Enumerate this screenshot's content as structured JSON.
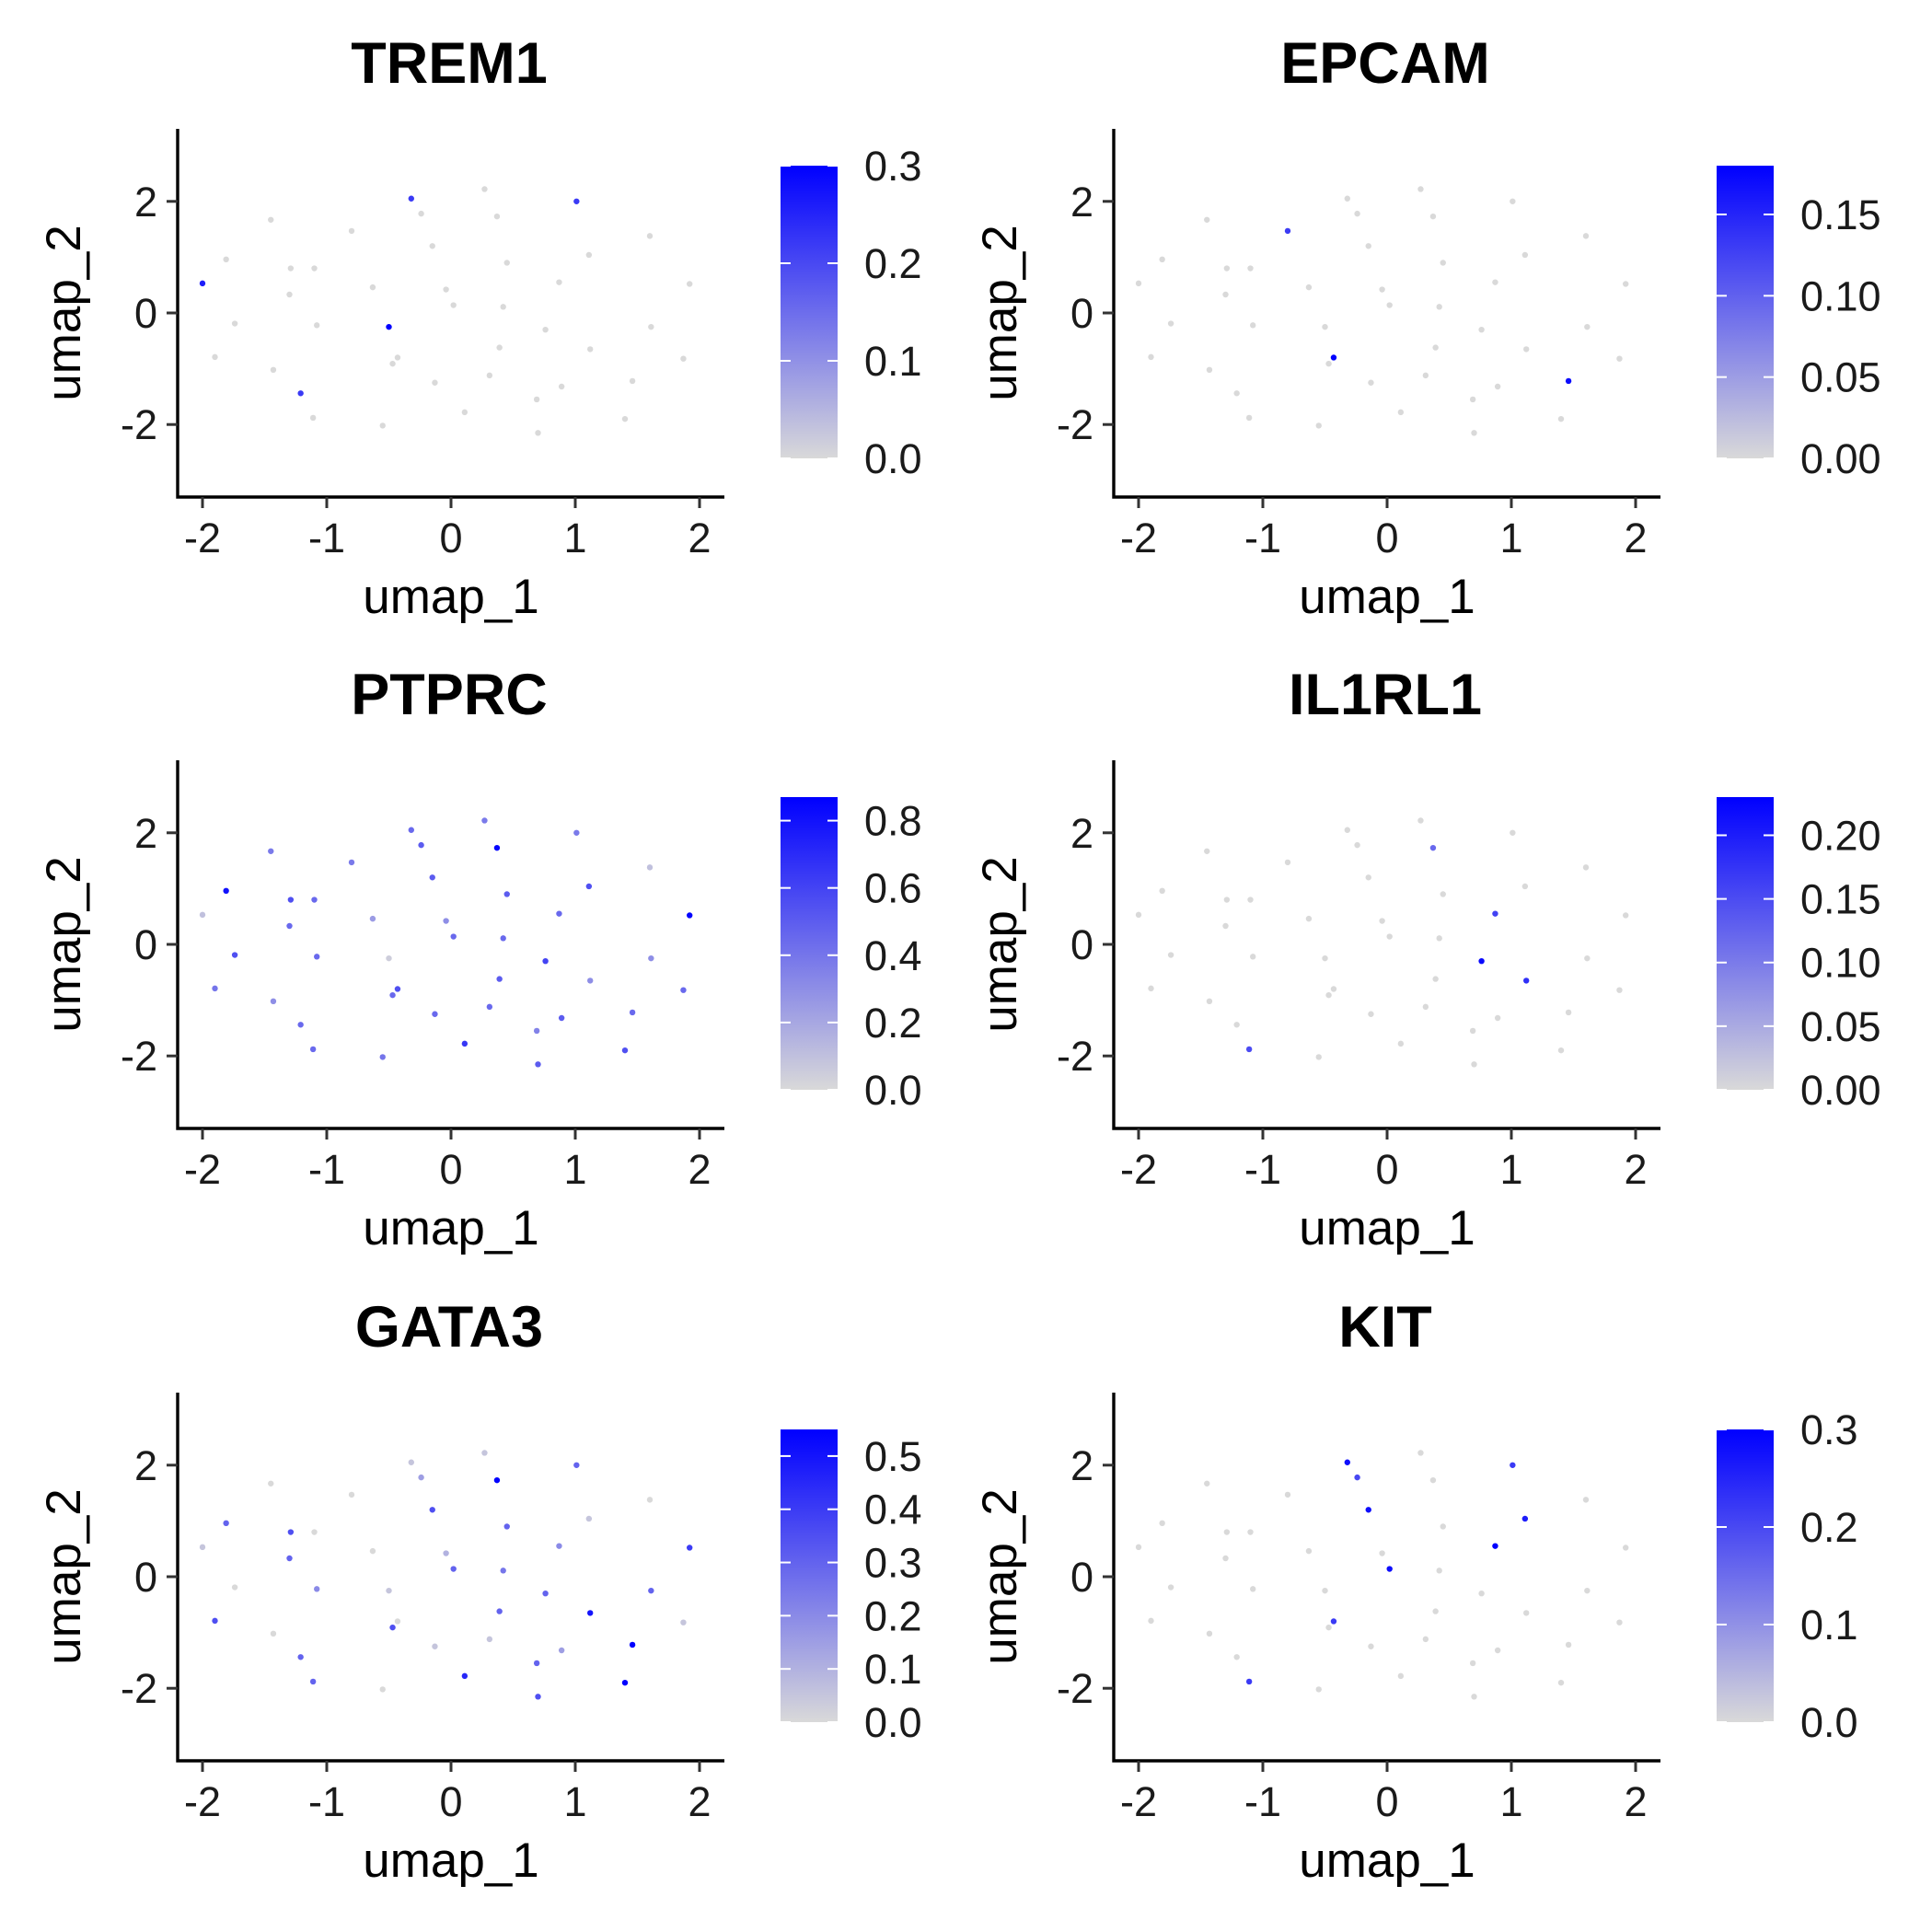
{
  "figure": {
    "panels": [
      "TREM1",
      "EPCAM",
      "PTPRC",
      "IL1RL1",
      "GATA3",
      "KIT"
    ]
  },
  "colors": {
    "low": "#d9d9d9",
    "high": "#0000ff"
  },
  "chart_data": [
    {
      "type": "scatter",
      "title": "TREM1",
      "xlabel": "umap_1",
      "ylabel": "umap_2",
      "xlim": [
        -2.2,
        2.2
      ],
      "ylim": [
        -3.3,
        3.3
      ],
      "xticks": [
        "-2",
        "-1",
        "0",
        "1",
        "2"
      ],
      "yticks": [
        "-2",
        "0",
        "2"
      ],
      "legend": {
        "position": "right",
        "range": [
          0,
          0.3
        ],
        "labels": [
          "0.0",
          "0.1",
          "0.2",
          "0.3"
        ]
      },
      "x": [
        -0.32,
        0.27,
        1.01,
        -0.24,
        0.37,
        -1.45,
        -0.8,
        1.6,
        -1.81,
        -0.15,
        0.45,
        1.11,
        -1.29,
        -1.1,
        -2.0,
        -1.3,
        -0.63,
        0.87,
        0.02,
        -0.04,
        0.42,
        1.92,
        -1.74,
        -1.08,
        -0.5,
        0.76,
        1.61,
        -0.43,
        -1.9,
        0.39,
        1.12,
        1.87,
        -1.43,
        -0.47,
        0.31,
        -0.13,
        0.89,
        1.46,
        -1.21,
        0.69,
        0.11,
        -1.11,
        1.4,
        -0.55,
        0.7
      ],
      "y": [
        2.05,
        2.22,
        2.0,
        1.78,
        1.73,
        1.67,
        1.47,
        1.38,
        0.96,
        1.2,
        0.9,
        1.04,
        0.8,
        0.8,
        0.53,
        0.33,
        0.46,
        0.55,
        0.14,
        0.42,
        0.11,
        0.52,
        -0.19,
        -0.22,
        -0.25,
        -0.3,
        -0.25,
        -0.8,
        -0.79,
        -0.62,
        -0.65,
        -0.82,
        -1.02,
        -0.91,
        -1.12,
        -1.25,
        -1.32,
        -1.22,
        -1.44,
        -1.55,
        -1.78,
        -1.88,
        -1.9,
        -2.02,
        -2.15
      ],
      "value": [
        0.22,
        0.0,
        0.22,
        0.0,
        0.0,
        0.0,
        0.0,
        0.0,
        0.0,
        0.0,
        0.0,
        0.0,
        0.0,
        0.0,
        0.26,
        0.0,
        0.0,
        0.0,
        0.0,
        0.0,
        0.0,
        0.0,
        0.0,
        0.0,
        0.3,
        0.0,
        0.0,
        0.0,
        0.0,
        0.0,
        0.0,
        0.0,
        0.0,
        0.0,
        0.0,
        0.0,
        0.0,
        0.0,
        0.22,
        0.0,
        0.0,
        0.0,
        0.0,
        0.0,
        0.0
      ]
    },
    {
      "type": "scatter",
      "title": "EPCAM",
      "xlabel": "umap_1",
      "ylabel": "umap_2",
      "xlim": [
        -2.2,
        2.2
      ],
      "ylim": [
        -3.3,
        3.3
      ],
      "xticks": [
        "-2",
        "-1",
        "0",
        "1",
        "2"
      ],
      "yticks": [
        "-2",
        "0",
        "2"
      ],
      "legend": {
        "position": "right",
        "range": [
          0,
          0.18
        ],
        "labels": [
          "0.00",
          "0.05",
          "0.10",
          "0.15"
        ]
      },
      "x": [
        -0.32,
        0.27,
        1.01,
        -0.24,
        0.37,
        -1.45,
        -0.8,
        1.6,
        -1.81,
        -0.15,
        0.45,
        1.11,
        -1.29,
        -1.1,
        -2.0,
        -1.3,
        -0.63,
        0.87,
        0.02,
        -0.04,
        0.42,
        1.92,
        -1.74,
        -1.08,
        -0.5,
        0.76,
        1.61,
        -0.43,
        -1.9,
        0.39,
        1.12,
        1.87,
        -1.43,
        -0.47,
        0.31,
        -0.13,
        0.89,
        1.46,
        -1.21,
        0.69,
        0.11,
        -1.11,
        1.4,
        -0.55,
        0.7
      ],
      "y": [
        2.05,
        2.22,
        2.0,
        1.78,
        1.73,
        1.67,
        1.47,
        1.38,
        0.96,
        1.2,
        0.9,
        1.04,
        0.8,
        0.8,
        0.53,
        0.33,
        0.46,
        0.55,
        0.14,
        0.42,
        0.11,
        0.52,
        -0.19,
        -0.22,
        -0.25,
        -0.3,
        -0.25,
        -0.8,
        -0.79,
        -0.62,
        -0.65,
        -0.82,
        -1.02,
        -0.91,
        -1.12,
        -1.25,
        -1.32,
        -1.22,
        -1.44,
        -1.55,
        -1.78,
        -1.88,
        -1.9,
        -2.02,
        -2.15
      ],
      "value": [
        0.0,
        0.0,
        0.0,
        0.0,
        0.0,
        0.0,
        0.13,
        0.0,
        0.0,
        0.0,
        0.0,
        0.0,
        0.0,
        0.0,
        0.0,
        0.0,
        0.0,
        0.0,
        0.0,
        0.0,
        0.0,
        0.0,
        0.0,
        0.0,
        0.0,
        0.0,
        0.0,
        0.18,
        0.0,
        0.0,
        0.0,
        0.0,
        0.0,
        0.0,
        0.0,
        0.0,
        0.0,
        0.17,
        0.0,
        0.0,
        0.0,
        0.0,
        0.0,
        0.0,
        0.0
      ]
    },
    {
      "type": "scatter",
      "title": "PTPRC",
      "xlabel": "umap_1",
      "ylabel": "umap_2",
      "xlim": [
        -2.2,
        2.2
      ],
      "ylim": [
        -3.3,
        3.3
      ],
      "xticks": [
        "-2",
        "-1",
        "0",
        "1",
        "2"
      ],
      "yticks": [
        "-2",
        "0",
        "2"
      ],
      "legend": {
        "position": "right",
        "range": [
          0,
          0.87
        ],
        "labels": [
          "0.0",
          "0.2",
          "0.4",
          "0.6",
          "0.8"
        ]
      },
      "x": [
        -0.32,
        0.27,
        1.01,
        -0.24,
        0.37,
        -1.45,
        -0.8,
        1.6,
        -1.81,
        -0.15,
        0.45,
        1.11,
        -1.29,
        -1.1,
        -2.0,
        -1.3,
        -0.63,
        0.87,
        0.02,
        -0.04,
        0.42,
        1.92,
        -1.74,
        -1.08,
        -0.5,
        0.76,
        1.61,
        -0.43,
        -1.9,
        0.39,
        1.12,
        1.87,
        -1.43,
        -0.47,
        0.31,
        -0.13,
        0.89,
        1.46,
        -1.21,
        0.69,
        0.11,
        -1.11,
        1.4,
        -0.55,
        0.7
      ],
      "y": [
        2.05,
        2.22,
        2.0,
        1.78,
        1.73,
        1.67,
        1.47,
        1.38,
        0.96,
        1.2,
        0.9,
        1.04,
        0.8,
        0.8,
        0.53,
        0.33,
        0.46,
        0.55,
        0.14,
        0.42,
        0.11,
        0.52,
        -0.19,
        -0.22,
        -0.25,
        -0.3,
        -0.25,
        -0.8,
        -0.79,
        -0.62,
        -0.65,
        -0.82,
        -1.02,
        -0.91,
        -1.12,
        -1.25,
        -1.32,
        -1.22,
        -1.44,
        -1.55,
        -1.78,
        -1.88,
        -1.9,
        -2.02,
        -2.15
      ],
      "value": [
        0.45,
        0.38,
        0.38,
        0.5,
        0.85,
        0.38,
        0.38,
        0.1,
        0.8,
        0.5,
        0.5,
        0.55,
        0.55,
        0.45,
        0.1,
        0.45,
        0.25,
        0.45,
        0.45,
        0.3,
        0.45,
        0.85,
        0.55,
        0.45,
        0.05,
        0.6,
        0.3,
        0.55,
        0.4,
        0.5,
        0.3,
        0.45,
        0.3,
        0.45,
        0.45,
        0.45,
        0.5,
        0.45,
        0.45,
        0.35,
        0.65,
        0.45,
        0.55,
        0.4,
        0.5
      ]
    },
    {
      "type": "scatter",
      "title": "IL1RL1",
      "xlabel": "umap_1",
      "ylabel": "umap_2",
      "xlim": [
        -2.2,
        2.2
      ],
      "ylim": [
        -3.3,
        3.3
      ],
      "xticks": [
        "-2",
        "-1",
        "0",
        "1",
        "2"
      ],
      "yticks": [
        "-2",
        "0",
        "2"
      ],
      "legend": {
        "position": "right",
        "range": [
          0,
          0.23
        ],
        "labels": [
          "0.00",
          "0.05",
          "0.10",
          "0.15",
          "0.20"
        ]
      },
      "x": [
        -0.32,
        0.27,
        1.01,
        -0.24,
        0.37,
        -1.45,
        -0.8,
        1.6,
        -1.81,
        -0.15,
        0.45,
        1.11,
        -1.29,
        -1.1,
        -2.0,
        -1.3,
        -0.63,
        0.87,
        0.02,
        -0.04,
        0.42,
        1.92,
        -1.74,
        -1.08,
        -0.5,
        0.76,
        1.61,
        -0.43,
        -1.9,
        0.39,
        1.12,
        1.87,
        -1.43,
        -0.47,
        0.31,
        -0.13,
        0.89,
        1.46,
        -1.21,
        0.69,
        0.11,
        -1.11,
        1.4,
        -0.55,
        0.7
      ],
      "y": [
        2.05,
        2.22,
        2.0,
        1.78,
        1.73,
        1.67,
        1.47,
        1.38,
        0.96,
        1.2,
        0.9,
        1.04,
        0.8,
        0.8,
        0.53,
        0.33,
        0.46,
        0.55,
        0.14,
        0.42,
        0.11,
        0.52,
        -0.19,
        -0.22,
        -0.25,
        -0.3,
        -0.25,
        -0.8,
        -0.79,
        -0.62,
        -0.65,
        -0.82,
        -1.02,
        -0.91,
        -1.12,
        -1.25,
        -1.32,
        -1.22,
        -1.44,
        -1.55,
        -1.78,
        -1.88,
        -1.9,
        -2.02,
        -2.15
      ],
      "value": [
        0.0,
        0.0,
        0.0,
        0.0,
        0.12,
        0.0,
        0.0,
        0.0,
        0.0,
        0.0,
        0.0,
        0.0,
        0.0,
        0.0,
        0.0,
        0.0,
        0.0,
        0.16,
        0.0,
        0.0,
        0.0,
        0.0,
        0.0,
        0.0,
        0.0,
        0.22,
        0.0,
        0.0,
        0.0,
        0.0,
        0.18,
        0.0,
        0.0,
        0.0,
        0.0,
        0.0,
        0.0,
        0.0,
        0.0,
        0.0,
        0.0,
        0.15,
        0.0,
        0.0,
        0.0
      ]
    },
    {
      "type": "scatter",
      "title": "GATA3",
      "xlabel": "umap_1",
      "ylabel": "umap_2",
      "xlim": [
        -2.2,
        2.2
      ],
      "ylim": [
        -3.3,
        3.3
      ],
      "xticks": [
        "-2",
        "-1",
        "0",
        "1",
        "2"
      ],
      "yticks": [
        "-2",
        "0",
        "2"
      ],
      "legend": {
        "position": "right",
        "range": [
          0,
          0.55
        ],
        "labels": [
          "0.0",
          "0.1",
          "0.2",
          "0.3",
          "0.4",
          "0.5"
        ]
      },
      "x": [
        -0.32,
        0.27,
        1.01,
        -0.24,
        0.37,
        -1.45,
        -0.8,
        1.6,
        -1.81,
        -0.15,
        0.45,
        1.11,
        -1.29,
        -1.1,
        -2.0,
        -1.3,
        -0.63,
        0.87,
        0.02,
        -0.04,
        0.42,
        1.92,
        -1.74,
        -1.08,
        -0.5,
        0.76,
        1.61,
        -0.43,
        -1.9,
        0.39,
        1.12,
        1.87,
        -1.43,
        -0.47,
        0.31,
        -0.13,
        0.89,
        1.46,
        -1.21,
        0.69,
        0.11,
        -1.11,
        1.4,
        -0.55,
        0.7
      ],
      "y": [
        2.05,
        2.22,
        2.0,
        1.78,
        1.73,
        1.67,
        1.47,
        1.38,
        0.96,
        1.2,
        0.9,
        1.04,
        0.8,
        0.8,
        0.53,
        0.33,
        0.46,
        0.55,
        0.14,
        0.42,
        0.11,
        0.52,
        -0.19,
        -0.22,
        -0.25,
        -0.3,
        -0.25,
        -0.8,
        -0.79,
        -0.62,
        -0.65,
        -0.82,
        -1.02,
        -0.91,
        -1.12,
        -1.25,
        -1.32,
        -1.22,
        -1.44,
        -1.55,
        -1.78,
        -1.88,
        -1.9,
        -2.02,
        -2.15
      ],
      "value": [
        0.05,
        0.05,
        0.3,
        0.15,
        0.55,
        0.0,
        0.0,
        0.0,
        0.3,
        0.35,
        0.3,
        0.05,
        0.35,
        0.0,
        0.05,
        0.3,
        0.0,
        0.2,
        0.3,
        0.1,
        0.25,
        0.4,
        0.0,
        0.2,
        0.05,
        0.3,
        0.3,
        0.0,
        0.35,
        0.3,
        0.5,
        0.05,
        0.0,
        0.35,
        0.05,
        0.05,
        0.15,
        0.55,
        0.3,
        0.3,
        0.45,
        0.3,
        0.55,
        0.0,
        0.35
      ]
    },
    {
      "type": "scatter",
      "title": "KIT",
      "xlabel": "umap_1",
      "ylabel": "umap_2",
      "xlim": [
        -2.2,
        2.2
      ],
      "ylim": [
        -3.3,
        3.3
      ],
      "xticks": [
        "-2",
        "-1",
        "0",
        "1",
        "2"
      ],
      "yticks": [
        "-2",
        "0",
        "2"
      ],
      "legend": {
        "position": "right",
        "range": [
          0,
          0.3
        ],
        "labels": [
          "0.0",
          "0.1",
          "0.2",
          "0.3"
        ]
      },
      "x": [
        -0.32,
        0.27,
        1.01,
        -0.24,
        0.37,
        -1.45,
        -0.8,
        1.6,
        -1.81,
        -0.15,
        0.45,
        1.11,
        -1.29,
        -1.1,
        -2.0,
        -1.3,
        -0.63,
        0.87,
        0.02,
        -0.04,
        0.42,
        1.92,
        -1.74,
        -1.08,
        -0.5,
        0.76,
        1.61,
        -0.43,
        -1.9,
        0.39,
        1.12,
        1.87,
        -1.43,
        -0.47,
        0.31,
        -0.13,
        0.89,
        1.46,
        -1.21,
        0.69,
        0.11,
        -1.11,
        1.4,
        -0.55,
        0.7
      ],
      "y": [
        2.05,
        2.22,
        2.0,
        1.78,
        1.73,
        1.67,
        1.47,
        1.38,
        0.96,
        1.2,
        0.9,
        1.04,
        0.8,
        0.8,
        0.53,
        0.33,
        0.46,
        0.55,
        0.14,
        0.42,
        0.11,
        0.52,
        -0.19,
        -0.22,
        -0.25,
        -0.3,
        -0.25,
        -0.8,
        -0.79,
        -0.62,
        -0.65,
        -0.82,
        -1.02,
        -0.91,
        -1.12,
        -1.25,
        -1.32,
        -1.22,
        -1.44,
        -1.55,
        -1.78,
        -1.88,
        -1.9,
        -2.02,
        -2.15
      ],
      "value": [
        0.28,
        0.0,
        0.22,
        0.2,
        0.0,
        0.0,
        0.0,
        0.0,
        0.0,
        0.28,
        0.0,
        0.26,
        0.0,
        0.0,
        0.0,
        0.0,
        0.0,
        0.3,
        0.28,
        0.0,
        0.0,
        0.0,
        0.0,
        0.0,
        0.0,
        0.0,
        0.0,
        0.22,
        0.0,
        0.0,
        0.0,
        0.0,
        0.0,
        0.0,
        0.0,
        0.0,
        0.0,
        0.0,
        0.0,
        0.0,
        0.0,
        0.22,
        0.0,
        0.0,
        0.0
      ]
    }
  ]
}
